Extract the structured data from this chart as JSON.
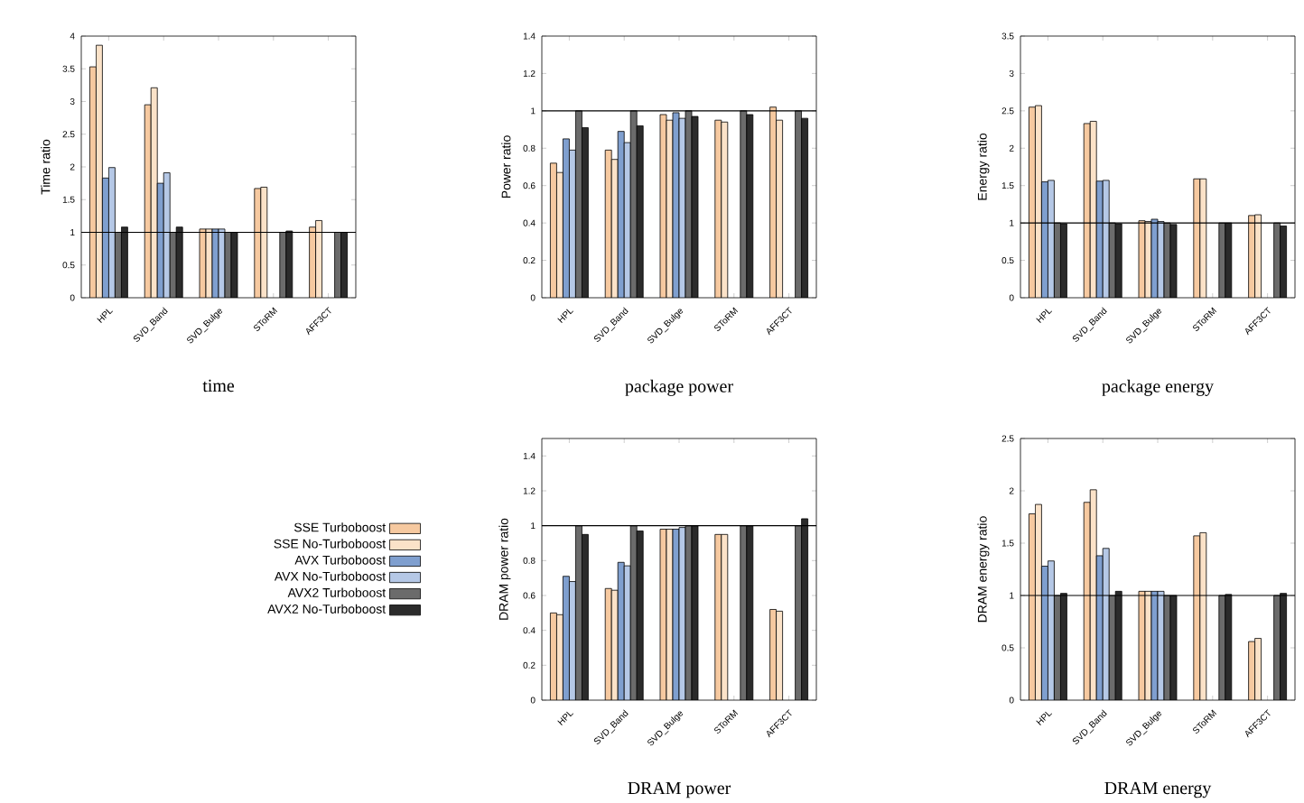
{
  "chart_data": [
    {
      "type": "bar",
      "title": "time",
      "ylabel": "Time ratio",
      "categories": [
        "HPL",
        "SVD_Band",
        "SVD_Bulge",
        "SToRM",
        "AFF3CT"
      ],
      "ylim": [
        0,
        4
      ],
      "yticks": [
        0,
        0.5,
        1,
        1.5,
        2,
        2.5,
        3,
        3.5,
        4
      ],
      "ref_lines": [
        {
          "axis": "y",
          "value": 1
        }
      ],
      "series": [
        {
          "color": "#f6c9a0",
          "values": [
            3.53,
            2.95,
            1.05,
            1.67,
            1.08
          ]
        },
        {
          "color": "#fbe2c8",
          "values": [
            3.86,
            3.21,
            1.05,
            1.69,
            1.18
          ]
        },
        {
          "color": "#7f9fcf",
          "values": [
            1.83,
            1.75,
            1.05,
            null,
            null
          ]
        },
        {
          "color": "#b5c8e6",
          "values": [
            1.99,
            1.91,
            1.05,
            null,
            null
          ]
        },
        {
          "color": "#6b6b6b",
          "values": [
            1.0,
            1.0,
            1.0,
            1.0,
            1.0
          ]
        },
        {
          "color": "#2b2b2b",
          "values": [
            1.08,
            1.08,
            1.0,
            1.02,
            1.0
          ]
        }
      ]
    },
    {
      "type": "bar",
      "title": "package power",
      "ylabel": "Power ratio",
      "categories": [
        "HPL",
        "SVD_Band",
        "SVD_Bulge",
        "SToRM",
        "AFF3CT"
      ],
      "ylim": [
        0,
        1.4
      ],
      "yticks": [
        0,
        0.2,
        0.4,
        0.6,
        0.8,
        1,
        1.2,
        1.4
      ],
      "ref_lines": [
        {
          "axis": "y",
          "value": 1
        }
      ],
      "series": [
        {
          "color": "#f6c9a0",
          "values": [
            0.72,
            0.79,
            0.98,
            0.95,
            1.02
          ]
        },
        {
          "color": "#fbe2c8",
          "values": [
            0.67,
            0.74,
            0.95,
            0.94,
            0.95
          ]
        },
        {
          "color": "#7f9fcf",
          "values": [
            0.85,
            0.89,
            0.99,
            null,
            null
          ]
        },
        {
          "color": "#b5c8e6",
          "values": [
            0.79,
            0.83,
            0.96,
            null,
            null
          ]
        },
        {
          "color": "#6b6b6b",
          "values": [
            1.0,
            1.0,
            1.0,
            1.0,
            1.0
          ]
        },
        {
          "color": "#2b2b2b",
          "values": [
            0.91,
            0.92,
            0.97,
            0.98,
            0.96
          ]
        }
      ]
    },
    {
      "type": "bar",
      "title": "package energy",
      "ylabel": "Energy ratio",
      "categories": [
        "HPL",
        "SVD_Band",
        "SVD_Bulge",
        "SToRM",
        "AFF3CT"
      ],
      "ylim": [
        0,
        3.5
      ],
      "yticks": [
        0,
        0.5,
        1,
        1.5,
        2,
        2.5,
        3,
        3.5
      ],
      "ref_lines": [
        {
          "axis": "y",
          "value": 1
        }
      ],
      "series": [
        {
          "color": "#f6c9a0",
          "values": [
            2.55,
            2.33,
            1.03,
            1.59,
            1.1
          ]
        },
        {
          "color": "#fbe2c8",
          "values": [
            2.57,
            2.36,
            1.02,
            1.59,
            1.11
          ]
        },
        {
          "color": "#7f9fcf",
          "values": [
            1.55,
            1.56,
            1.05,
            null,
            null
          ]
        },
        {
          "color": "#b5c8e6",
          "values": [
            1.57,
            1.57,
            1.02,
            null,
            null
          ]
        },
        {
          "color": "#6b6b6b",
          "values": [
            1.0,
            1.0,
            1.0,
            1.0,
            1.0
          ]
        },
        {
          "color": "#2b2b2b",
          "values": [
            0.99,
            0.99,
            0.98,
            1.0,
            0.96
          ]
        }
      ]
    },
    {
      "type": "bar",
      "title": "DRAM power",
      "ylabel": "DRAM power ratio",
      "categories": [
        "HPL",
        "SVD_Band",
        "SVD_Bulge",
        "SToRM",
        "AFF3CT"
      ],
      "ylim": [
        0,
        1.5
      ],
      "yticks": [
        0,
        0.2,
        0.4,
        0.6,
        0.8,
        1,
        1.2,
        1.4
      ],
      "ref_lines": [
        {
          "axis": "y",
          "value": 1
        }
      ],
      "legend": "left",
      "series": [
        {
          "name": "SSE Turboboost",
          "color": "#f6c9a0",
          "values": [
            0.5,
            0.64,
            0.98,
            0.95,
            0.52
          ]
        },
        {
          "name": "SSE No-Turboboost",
          "color": "#fbe2c8",
          "values": [
            0.49,
            0.63,
            0.98,
            0.95,
            0.51
          ]
        },
        {
          "name": "AVX Turboboost",
          "color": "#7f9fcf",
          "values": [
            0.71,
            0.79,
            0.98,
            null,
            null
          ]
        },
        {
          "name": "AVX No-Turboboost",
          "color": "#b5c8e6",
          "values": [
            0.68,
            0.77,
            0.99,
            null,
            null
          ]
        },
        {
          "name": "AVX2 Turboboost",
          "color": "#6b6b6b",
          "values": [
            1.0,
            1.0,
            1.0,
            1.0,
            1.0
          ]
        },
        {
          "name": "AVX2 No-Turboboost",
          "color": "#2b2b2b",
          "values": [
            0.95,
            0.97,
            1.0,
            1.0,
            1.04
          ]
        }
      ]
    },
    {
      "type": "bar",
      "title": "DRAM energy",
      "ylabel": "DRAM energy ratio",
      "categories": [
        "HPL",
        "SVD_Band",
        "SVD_Bulge",
        "SToRM",
        "AFF3CT"
      ],
      "ylim": [
        0,
        2.5
      ],
      "yticks": [
        0,
        0.5,
        1,
        1.5,
        2,
        2.5
      ],
      "ref_lines": [
        {
          "axis": "y",
          "value": 1
        }
      ],
      "series": [
        {
          "color": "#f6c9a0",
          "values": [
            1.78,
            1.89,
            1.04,
            1.57,
            0.56
          ]
        },
        {
          "color": "#fbe2c8",
          "values": [
            1.87,
            2.01,
            1.04,
            1.6,
            0.59
          ]
        },
        {
          "color": "#7f9fcf",
          "values": [
            1.28,
            1.38,
            1.04,
            null,
            null
          ]
        },
        {
          "color": "#b5c8e6",
          "values": [
            1.33,
            1.45,
            1.04,
            null,
            null
          ]
        },
        {
          "color": "#6b6b6b",
          "values": [
            1.0,
            1.0,
            1.0,
            1.0,
            1.0
          ]
        },
        {
          "color": "#2b2b2b",
          "values": [
            1.02,
            1.04,
            1.0,
            1.01,
            1.02
          ]
        }
      ]
    }
  ]
}
